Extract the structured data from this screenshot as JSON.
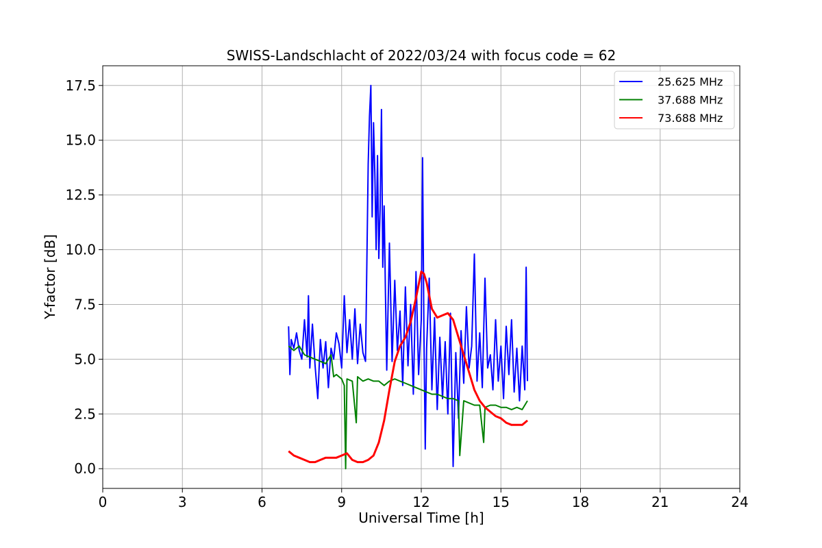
{
  "chart_data": {
    "type": "line",
    "title": "SWISS-Landschlacht of 2022/03/24 with focus code = 62",
    "xlabel": "Universal Time [h]",
    "ylabel": "Y-factor [dB]",
    "xlim": [
      0,
      24
    ],
    "ylim": [
      -0.9,
      18.4
    ],
    "xticks": [
      0,
      3,
      6,
      9,
      12,
      15,
      18,
      21,
      24
    ],
    "xtick_labels": [
      "0",
      "3",
      "6",
      "9",
      "12",
      "15",
      "18",
      "21",
      "24"
    ],
    "yticks": [
      0,
      2.5,
      5,
      7.5,
      10,
      12.5,
      15,
      17.5
    ],
    "ytick_labels": [
      "0.0",
      "2.5",
      "5.0",
      "7.5",
      "10.0",
      "12.5",
      "15.0",
      "17.5"
    ],
    "grid": true,
    "legend_position": "top-right",
    "series": [
      {
        "name": "25.625 MHz",
        "color": "#0000ff",
        "x": [
          7.0,
          7.05,
          7.1,
          7.2,
          7.3,
          7.4,
          7.5,
          7.6,
          7.7,
          7.75,
          7.8,
          7.9,
          8.0,
          8.1,
          8.2,
          8.3,
          8.4,
          8.5,
          8.6,
          8.7,
          8.8,
          8.9,
          9.0,
          9.1,
          9.2,
          9.3,
          9.4,
          9.5,
          9.6,
          9.7,
          9.8,
          9.9,
          10.0,
          10.05,
          10.1,
          10.15,
          10.2,
          10.25,
          10.3,
          10.35,
          10.4,
          10.45,
          10.5,
          10.55,
          10.6,
          10.65,
          10.7,
          10.8,
          10.9,
          11.0,
          11.1,
          11.2,
          11.3,
          11.4,
          11.5,
          11.6,
          11.7,
          11.8,
          11.9,
          12.0,
          12.05,
          12.1,
          12.15,
          12.2,
          12.3,
          12.4,
          12.5,
          12.6,
          12.7,
          12.8,
          12.9,
          13.0,
          13.1,
          13.2,
          13.3,
          13.4,
          13.5,
          13.6,
          13.7,
          13.8,
          13.9,
          14.0,
          14.1,
          14.2,
          14.3,
          14.4,
          14.5,
          14.6,
          14.7,
          14.8,
          14.9,
          15.0,
          15.1,
          15.2,
          15.3,
          15.4,
          15.5,
          15.6,
          15.7,
          15.8,
          15.9,
          15.95,
          16.0
        ],
        "values": [
          6.5,
          4.3,
          5.9,
          5.5,
          6.2,
          5.4,
          5.0,
          6.8,
          5.1,
          7.9,
          4.6,
          6.6,
          4.7,
          3.2,
          5.9,
          4.6,
          5.8,
          3.7,
          5.5,
          5.0,
          6.2,
          5.7,
          4.6,
          7.9,
          5.3,
          6.8,
          5.0,
          7.3,
          4.8,
          6.6,
          5.3,
          4.9,
          13.9,
          16.1,
          17.5,
          11.5,
          15.8,
          13.5,
          10.0,
          14.3,
          9.6,
          11.8,
          16.4,
          9.2,
          12.0,
          8.0,
          4.5,
          10.3,
          4.9,
          8.6,
          5.4,
          7.2,
          3.8,
          8.3,
          4.7,
          7.5,
          3.4,
          9.0,
          4.3,
          6.8,
          14.2,
          6.1,
          0.9,
          5.5,
          8.7,
          3.6,
          6.9,
          2.7,
          6.0,
          3.2,
          5.8,
          2.5,
          7.1,
          0.1,
          5.3,
          2.3,
          6.3,
          3.9,
          7.4,
          4.6,
          5.6,
          9.8,
          4.0,
          6.2,
          3.7,
          8.7,
          4.6,
          5.2,
          3.6,
          6.8,
          4.0,
          5.6,
          3.2,
          6.5,
          4.3,
          6.8,
          3.5,
          5.5,
          3.1,
          5.6,
          3.6,
          9.2,
          4.0
        ]
      },
      {
        "name": "37.688 MHz",
        "color": "#008000",
        "x": [
          7.0,
          7.2,
          7.4,
          7.6,
          7.8,
          8.0,
          8.2,
          8.4,
          8.6,
          8.7,
          8.8,
          9.0,
          9.1,
          9.15,
          9.2,
          9.4,
          9.55,
          9.6,
          9.8,
          10.0,
          10.2,
          10.4,
          10.6,
          10.8,
          11.0,
          11.2,
          11.4,
          11.6,
          11.8,
          12.0,
          12.2,
          12.4,
          12.6,
          12.8,
          13.0,
          13.2,
          13.4,
          13.45,
          13.6,
          13.8,
          14.0,
          14.2,
          14.35,
          14.4,
          14.6,
          14.8,
          15.0,
          15.2,
          15.4,
          15.6,
          15.8,
          16.0
        ],
        "values": [
          5.6,
          5.4,
          5.6,
          5.2,
          5.1,
          5.0,
          4.9,
          4.8,
          5.2,
          4.2,
          4.3,
          4.1,
          3.8,
          0.0,
          4.1,
          4.0,
          2.1,
          4.2,
          4.0,
          4.1,
          4.0,
          4.0,
          3.8,
          4.0,
          4.1,
          4.0,
          3.9,
          3.8,
          3.7,
          3.6,
          3.5,
          3.4,
          3.4,
          3.3,
          3.2,
          3.2,
          3.1,
          0.6,
          3.1,
          3.0,
          2.9,
          2.9,
          1.2,
          2.8,
          2.9,
          2.9,
          2.8,
          2.8,
          2.7,
          2.8,
          2.7,
          3.1
        ]
      },
      {
        "name": "73.688 MHz",
        "color": "#ff0000",
        "x": [
          7.0,
          7.2,
          7.4,
          7.6,
          7.8,
          8.0,
          8.2,
          8.4,
          8.6,
          8.8,
          9.0,
          9.2,
          9.4,
          9.6,
          9.8,
          10.0,
          10.2,
          10.4,
          10.6,
          10.8,
          11.0,
          11.2,
          11.4,
          11.6,
          11.8,
          12.0,
          12.1,
          12.2,
          12.4,
          12.6,
          12.8,
          13.0,
          13.2,
          13.4,
          13.6,
          13.8,
          14.0,
          14.2,
          14.4,
          14.6,
          14.8,
          15.0,
          15.2,
          15.4,
          15.6,
          15.8,
          16.0
        ],
        "values": [
          0.8,
          0.6,
          0.5,
          0.4,
          0.3,
          0.3,
          0.4,
          0.5,
          0.5,
          0.5,
          0.6,
          0.7,
          0.4,
          0.3,
          0.3,
          0.4,
          0.6,
          1.2,
          2.2,
          3.6,
          4.9,
          5.6,
          6.0,
          6.7,
          7.8,
          9.0,
          8.9,
          8.5,
          7.3,
          6.9,
          7.0,
          7.1,
          6.8,
          6.0,
          5.2,
          4.4,
          3.6,
          3.1,
          2.8,
          2.6,
          2.4,
          2.3,
          2.1,
          2.0,
          2.0,
          2.0,
          2.2
        ]
      }
    ]
  }
}
